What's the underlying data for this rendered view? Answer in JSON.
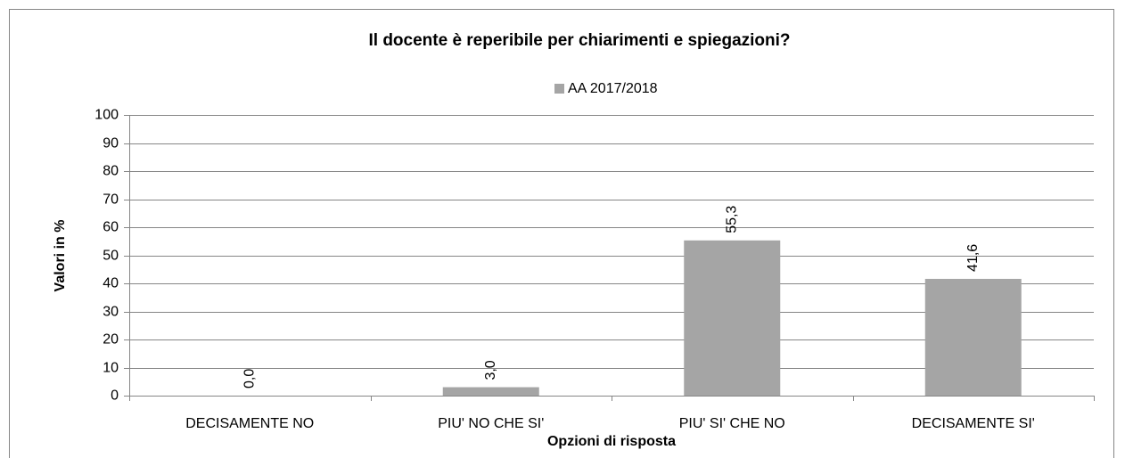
{
  "chart_data": {
    "type": "bar",
    "title": "Il docente è reperibile per chiarimenti e spiegazioni?",
    "x_label": "Opzioni di risposta",
    "y_label": "Valori in %",
    "categories": [
      "DECISAMENTE NO",
      "PIU' NO CHE SI'",
      "PIU' SI' CHE NO",
      "DECISAMENTE SI'"
    ],
    "series": [
      {
        "name": "AA 2017/2018",
        "color": "#a5a5a5",
        "values": [
          0.0,
          3.0,
          55.3,
          41.6
        ],
        "value_labels": [
          "0,0",
          "3,0",
          "55,3",
          "41,6"
        ]
      }
    ],
    "ylim": [
      0,
      100
    ],
    "yticks": [
      0,
      10,
      20,
      30,
      40,
      50,
      60,
      70,
      80,
      90,
      100
    ],
    "grid": true,
    "legend": "top"
  }
}
